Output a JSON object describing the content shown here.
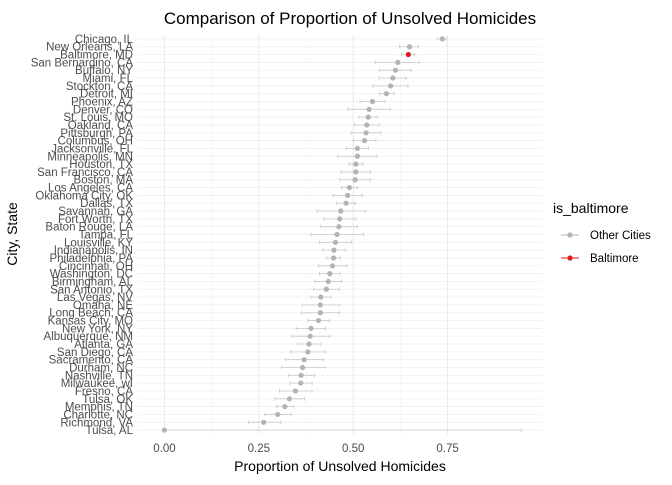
{
  "chart_data": {
    "type": "scatter",
    "title": "Comparison of Proportion of Unsolved Homicides",
    "xlabel": "Proportion of Unsolved Homicides",
    "ylabel": "City, State",
    "xlim": [
      -0.07,
      1.0
    ],
    "xticks": [
      0.0,
      0.25,
      0.5,
      0.75
    ],
    "xtick_labels": [
      "0.00",
      "0.25",
      "0.50",
      "0.75"
    ],
    "grid": true,
    "legend": {
      "title": "is_baltimore",
      "position": "right",
      "entries": [
        {
          "label": "Other Cities",
          "color": "#b3b3b3"
        },
        {
          "label": "Baltimore",
          "color": "#e31a1c"
        }
      ]
    },
    "colors": {
      "other": "#b3b3b3",
      "baltimore": "#e31a1c",
      "errorbar": "#c8c8c8"
    },
    "points": [
      {
        "city": "Chicago, IL",
        "estimate": 0.736,
        "low": 0.724,
        "high": 0.747,
        "is_baltimore": false
      },
      {
        "city": "New Orleans, LA",
        "estimate": 0.649,
        "low": 0.623,
        "high": 0.673,
        "is_baltimore": false
      },
      {
        "city": "Baltimore, MD",
        "estimate": 0.646,
        "low": 0.628,
        "high": 0.663,
        "is_baltimore": true
      },
      {
        "city": "San Bernardino, CA",
        "estimate": 0.618,
        "low": 0.558,
        "high": 0.675,
        "is_baltimore": false
      },
      {
        "city": "Buffalo, NY",
        "estimate": 0.612,
        "low": 0.569,
        "high": 0.654,
        "is_baltimore": false
      },
      {
        "city": "Miami, FL",
        "estimate": 0.605,
        "low": 0.569,
        "high": 0.64,
        "is_baltimore": false
      },
      {
        "city": "Stockton, CA",
        "estimate": 0.599,
        "low": 0.552,
        "high": 0.645,
        "is_baltimore": false
      },
      {
        "city": "Detroit, MI",
        "estimate": 0.588,
        "low": 0.569,
        "high": 0.608,
        "is_baltimore": false
      },
      {
        "city": "Phoenix, AZ",
        "estimate": 0.551,
        "low": 0.518,
        "high": 0.584,
        "is_baltimore": false
      },
      {
        "city": "Denver, CO",
        "estimate": 0.542,
        "low": 0.485,
        "high": 0.598,
        "is_baltimore": false
      },
      {
        "city": "St. Louis, MO",
        "estimate": 0.54,
        "low": 0.515,
        "high": 0.564,
        "is_baltimore": false
      },
      {
        "city": "Oakland, CA",
        "estimate": 0.536,
        "low": 0.504,
        "high": 0.569,
        "is_baltimore": false
      },
      {
        "city": "Pittsburgh, PA",
        "estimate": 0.534,
        "low": 0.494,
        "high": 0.573,
        "is_baltimore": false
      },
      {
        "city": "Columbus, OH",
        "estimate": 0.53,
        "low": 0.5,
        "high": 0.56,
        "is_baltimore": false
      },
      {
        "city": "Jacksonville, FL",
        "estimate": 0.511,
        "low": 0.482,
        "high": 0.54,
        "is_baltimore": false
      },
      {
        "city": "Minneapolis, MN",
        "estimate": 0.511,
        "low": 0.459,
        "high": 0.563,
        "is_baltimore": false
      },
      {
        "city": "Houston, TX",
        "estimate": 0.507,
        "low": 0.489,
        "high": 0.526,
        "is_baltimore": false
      },
      {
        "city": "San Francisco, CA",
        "estimate": 0.507,
        "low": 0.468,
        "high": 0.546,
        "is_baltimore": false
      },
      {
        "city": "Boston, MA",
        "estimate": 0.505,
        "low": 0.465,
        "high": 0.545,
        "is_baltimore": false
      },
      {
        "city": "Los Angeles, CA",
        "estimate": 0.49,
        "low": 0.469,
        "high": 0.511,
        "is_baltimore": false
      },
      {
        "city": "Oklahoma City, OK",
        "estimate": 0.485,
        "low": 0.447,
        "high": 0.524,
        "is_baltimore": false
      },
      {
        "city": "Dallas, TX",
        "estimate": 0.481,
        "low": 0.456,
        "high": 0.506,
        "is_baltimore": false
      },
      {
        "city": "Savannah, GA",
        "estimate": 0.467,
        "low": 0.404,
        "high": 0.532,
        "is_baltimore": false
      },
      {
        "city": "Fort Worth, TX",
        "estimate": 0.464,
        "low": 0.422,
        "high": 0.507,
        "is_baltimore": false
      },
      {
        "city": "Baton Rouge, LA",
        "estimate": 0.462,
        "low": 0.414,
        "high": 0.511,
        "is_baltimore": false
      },
      {
        "city": "Tampa, FL",
        "estimate": 0.457,
        "low": 0.388,
        "high": 0.527,
        "is_baltimore": false
      },
      {
        "city": "Louisville, KY",
        "estimate": 0.453,
        "low": 0.411,
        "high": 0.496,
        "is_baltimore": false
      },
      {
        "city": "Indianapolis, IN",
        "estimate": 0.449,
        "low": 0.42,
        "high": 0.479,
        "is_baltimore": false
      },
      {
        "city": "Philadelphia, PA",
        "estimate": 0.448,
        "low": 0.43,
        "high": 0.466,
        "is_baltimore": false
      },
      {
        "city": "Cincinnati, OH",
        "estimate": 0.445,
        "low": 0.408,
        "high": 0.483,
        "is_baltimore": false
      },
      {
        "city": "Washington, DC",
        "estimate": 0.438,
        "low": 0.411,
        "high": 0.465,
        "is_baltimore": false
      },
      {
        "city": "Birmingham, AL",
        "estimate": 0.434,
        "low": 0.399,
        "high": 0.469,
        "is_baltimore": false
      },
      {
        "city": "San Antonio, TX",
        "estimate": 0.429,
        "low": 0.395,
        "high": 0.463,
        "is_baltimore": false
      },
      {
        "city": "Las Vegas, NV",
        "estimate": 0.414,
        "low": 0.388,
        "high": 0.441,
        "is_baltimore": false
      },
      {
        "city": "Omaha, NE",
        "estimate": 0.413,
        "low": 0.365,
        "high": 0.463,
        "is_baltimore": false
      },
      {
        "city": "Long Beach, CA",
        "estimate": 0.413,
        "low": 0.363,
        "high": 0.464,
        "is_baltimore": false
      },
      {
        "city": "Kansas City, MO",
        "estimate": 0.408,
        "low": 0.38,
        "high": 0.437,
        "is_baltimore": false
      },
      {
        "city": "New York, NY",
        "estimate": 0.388,
        "low": 0.349,
        "high": 0.427,
        "is_baltimore": false
      },
      {
        "city": "Albuquerque, NM",
        "estimate": 0.386,
        "low": 0.337,
        "high": 0.438,
        "is_baltimore": false
      },
      {
        "city": "Atlanta, GA",
        "estimate": 0.383,
        "low": 0.353,
        "high": 0.415,
        "is_baltimore": false
      },
      {
        "city": "San Diego, CA",
        "estimate": 0.38,
        "low": 0.335,
        "high": 0.426,
        "is_baltimore": false
      },
      {
        "city": "Sacramento, CA",
        "estimate": 0.37,
        "low": 0.321,
        "high": 0.421,
        "is_baltimore": false
      },
      {
        "city": "Durham, NC",
        "estimate": 0.366,
        "low": 0.31,
        "high": 0.426,
        "is_baltimore": false
      },
      {
        "city": "Nashville, TN",
        "estimate": 0.362,
        "low": 0.329,
        "high": 0.398,
        "is_baltimore": false
      },
      {
        "city": "Milwaukee, wI",
        "estimate": 0.361,
        "low": 0.333,
        "high": 0.391,
        "is_baltimore": false
      },
      {
        "city": "Fresno, CA",
        "estimate": 0.347,
        "low": 0.305,
        "high": 0.391,
        "is_baltimore": false
      },
      {
        "city": "Tulsa, OK",
        "estimate": 0.331,
        "low": 0.293,
        "high": 0.371,
        "is_baltimore": false
      },
      {
        "city": "Memphis, TN",
        "estimate": 0.319,
        "low": 0.297,
        "high": 0.343,
        "is_baltimore": false
      },
      {
        "city": "Charlotte, NC",
        "estimate": 0.3,
        "low": 0.266,
        "high": 0.336,
        "is_baltimore": false
      },
      {
        "city": "Richmond, VA",
        "estimate": 0.263,
        "low": 0.223,
        "high": 0.308,
        "is_baltimore": false
      },
      {
        "city": "Tulsa, AL",
        "estimate": 0.0,
        "low": 0.0,
        "high": 0.945,
        "is_baltimore": false
      }
    ]
  }
}
